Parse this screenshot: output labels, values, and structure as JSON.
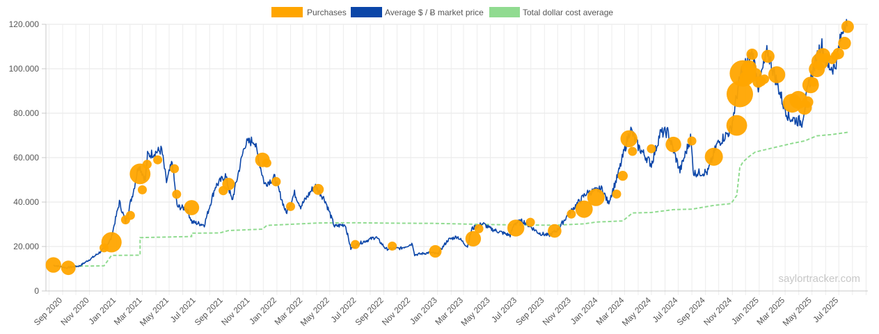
{
  "chart_data": {
    "type": "line",
    "legend": [
      {
        "label": "Purchases",
        "color": "#FFA500",
        "kind": "bubble"
      },
      {
        "label": "Average $ / Ƀ market price",
        "color": "#0B46A8",
        "kind": "line"
      },
      {
        "label": "Total dollar cost average",
        "color": "#90DB90",
        "kind": "dashed"
      }
    ],
    "legend_position": "top-center",
    "grid": true,
    "ylim": [
      0,
      120000
    ],
    "y_ticks": [
      {
        "value": 0,
        "label": "0"
      },
      {
        "value": 20000,
        "label": "20.000"
      },
      {
        "value": 40000,
        "label": "40.000"
      },
      {
        "value": 60000,
        "label": "60.000"
      },
      {
        "value": 80000,
        "label": "80.000"
      },
      {
        "value": 100000,
        "label": "100.000"
      },
      {
        "value": 120000,
        "label": "120.000"
      }
    ],
    "x_ticks": [
      "Sep 2020",
      "Nov 2020",
      "Jan 2021",
      "Mar 2021",
      "May 2021",
      "Jul 2021",
      "Sep 2021",
      "Nov 2021",
      "Jan 2022",
      "Mar 2022",
      "May 2022",
      "Jul 2022",
      "Sep 2022",
      "Nov 2022",
      "Jan 2023",
      "Mar 2023",
      "May 2023",
      "Jul 2023",
      "Sep 2023",
      "Nov 2023",
      "Jan 2024",
      "Mar 2024",
      "May 2024",
      "Jul 2024",
      "Sep 2024",
      "Nov 2024",
      "Jan 2025",
      "Mar 2025",
      "May 2025",
      "Jul 2025"
    ],
    "series": [
      {
        "name": "Average $ / Ƀ market price",
        "color": "#0B46A8",
        "points": [
          [
            "2020-08-11",
            11600
          ],
          [
            "2020-09-10",
            10400
          ],
          [
            "2020-10-10",
            11300
          ],
          [
            "2020-11-10",
            15300
          ],
          [
            "2020-12-05",
            19000
          ],
          [
            "2020-12-20",
            23500
          ],
          [
            "2021-01-08",
            40000
          ],
          [
            "2021-01-22",
            31000
          ],
          [
            "2021-02-10",
            46000
          ],
          [
            "2021-02-21",
            57000
          ],
          [
            "2021-03-08",
            50000
          ],
          [
            "2021-03-13",
            61000
          ],
          [
            "2021-04-14",
            63500
          ],
          [
            "2021-04-25",
            49000
          ],
          [
            "2021-05-08",
            58000
          ],
          [
            "2021-05-19",
            38000
          ],
          [
            "2021-06-10",
            37000
          ],
          [
            "2021-06-22",
            31000
          ],
          [
            "2021-07-20",
            29800
          ],
          [
            "2021-08-14",
            47000
          ],
          [
            "2021-09-06",
            52000
          ],
          [
            "2021-09-21",
            40500
          ],
          [
            "2021-10-20",
            66000
          ],
          [
            "2021-11-10",
            68000
          ],
          [
            "2021-12-04",
            48000
          ],
          [
            "2021-12-27",
            51000
          ],
          [
            "2022-01-22",
            35000
          ],
          [
            "2022-02-10",
            44000
          ],
          [
            "2022-02-24",
            38000
          ],
          [
            "2022-03-28",
            47500
          ],
          [
            "2022-04-20",
            41000
          ],
          [
            "2022-05-12",
            29000
          ],
          [
            "2022-06-05",
            30000
          ],
          [
            "2022-06-18",
            19000
          ],
          [
            "2022-07-08",
            21500
          ],
          [
            "2022-08-14",
            24300
          ],
          [
            "2022-09-06",
            18900
          ],
          [
            "2022-10-10",
            19200
          ],
          [
            "2022-11-05",
            21300
          ],
          [
            "2022-11-10",
            16300
          ],
          [
            "2022-12-15",
            17300
          ],
          [
            "2023-01-01",
            16600
          ],
          [
            "2023-01-25",
            23000
          ],
          [
            "2023-02-15",
            24500
          ],
          [
            "2023-03-10",
            20000
          ],
          [
            "2023-03-20",
            28000
          ],
          [
            "2023-04-14",
            30300
          ],
          [
            "2023-05-01",
            28000
          ],
          [
            "2023-06-15",
            25000
          ],
          [
            "2023-06-25",
            30500
          ],
          [
            "2023-07-14",
            31500
          ],
          [
            "2023-08-20",
            26000
          ],
          [
            "2023-09-11",
            25000
          ],
          [
            "2023-10-01",
            27500
          ],
          [
            "2023-10-25",
            34500
          ],
          [
            "2023-12-05",
            44000
          ],
          [
            "2024-01-10",
            46000
          ],
          [
            "2024-01-24",
            39500
          ],
          [
            "2024-02-14",
            51500
          ],
          [
            "2024-03-14",
            73000
          ],
          [
            "2024-04-01",
            65000
          ],
          [
            "2024-05-01",
            57000
          ],
          [
            "2024-05-21",
            71000
          ],
          [
            "2024-06-07",
            71500
          ],
          [
            "2024-07-05",
            54000
          ],
          [
            "2024-07-29",
            69000
          ],
          [
            "2024-08-05",
            53000
          ],
          [
            "2024-09-06",
            53500
          ],
          [
            "2024-09-27",
            66000
          ],
          [
            "2024-10-29",
            72500
          ],
          [
            "2024-11-12",
            89000
          ],
          [
            "2024-11-22",
            99000
          ],
          [
            "2024-12-17",
            107000
          ],
          [
            "2024-12-30",
            92000
          ],
          [
            "2025-01-20",
            108000
          ],
          [
            "2025-02-25",
            84000
          ],
          [
            "2025-03-10",
            78000
          ],
          [
            "2025-04-08",
            76000
          ],
          [
            "2025-04-25",
            94000
          ],
          [
            "2025-05-22",
            111500
          ],
          [
            "2025-06-05",
            101000
          ],
          [
            "2025-06-22",
            100500
          ],
          [
            "2025-07-14",
            122000
          ],
          [
            "2025-07-20",
            119000
          ]
        ]
      },
      {
        "name": "Total dollar cost average",
        "color": "#90DB90",
        "points": [
          [
            "2020-09-14",
            11100
          ],
          [
            "2020-12-04",
            11300
          ],
          [
            "2020-12-21",
            16000
          ],
          [
            "2021-02-24",
            16100
          ],
          [
            "2021-02-24",
            24000
          ],
          [
            "2021-06-21",
            24500
          ],
          [
            "2021-06-21",
            26000
          ],
          [
            "2021-08-24",
            26100
          ],
          [
            "2021-09-13",
            27200
          ],
          [
            "2021-11-29",
            27800
          ],
          [
            "2021-12-09",
            29500
          ],
          [
            "2022-01-31",
            30000
          ],
          [
            "2022-04-05",
            30600
          ],
          [
            "2022-06-28",
            30700
          ],
          [
            "2022-09-20",
            30500
          ],
          [
            "2022-12-27",
            30400
          ],
          [
            "2023-03-27",
            30000
          ],
          [
            "2023-06-28",
            29700
          ],
          [
            "2023-09-24",
            29600
          ],
          [
            "2023-11-30",
            30200
          ],
          [
            "2023-12-27",
            31000
          ],
          [
            "2024-02-26",
            31500
          ],
          [
            "2024-03-19",
            35100
          ],
          [
            "2024-05-01",
            35300
          ],
          [
            "2024-06-20",
            36600
          ],
          [
            "2024-08-01",
            36800
          ],
          [
            "2024-09-20",
            38500
          ],
          [
            "2024-10-29",
            39300
          ],
          [
            "2024-11-11",
            43000
          ],
          [
            "2024-11-18",
            55500
          ],
          [
            "2024-11-25",
            58000
          ],
          [
            "2024-12-09",
            60500
          ],
          [
            "2024-12-23",
            62500
          ],
          [
            "2025-02-10",
            64800
          ],
          [
            "2025-03-17",
            66400
          ],
          [
            "2025-04-14",
            67500
          ],
          [
            "2025-05-12",
            69800
          ],
          [
            "2025-06-16",
            70400
          ],
          [
            "2025-07-21",
            71400
          ]
        ]
      },
      {
        "name": "Purchases",
        "color": "#FFA500",
        "points": [
          [
            "2020-08-11",
            11700,
            170
          ],
          [
            "2020-09-14",
            10400,
            145
          ],
          [
            "2020-12-04",
            19400,
            40
          ],
          [
            "2020-12-21",
            21900,
            290
          ],
          [
            "2021-01-22",
            32000,
            40
          ],
          [
            "2021-02-02",
            34000,
            35
          ],
          [
            "2021-02-24",
            52700,
            300
          ],
          [
            "2021-03-01",
            45500,
            35
          ],
          [
            "2021-03-12",
            57000,
            35
          ],
          [
            "2021-04-05",
            59000,
            40
          ],
          [
            "2021-05-13",
            55000,
            40
          ],
          [
            "2021-05-18",
            43500,
            35
          ],
          [
            "2021-06-21",
            37500,
            160
          ],
          [
            "2021-09-01",
            45200,
            60
          ],
          [
            "2021-09-13",
            48100,
            110
          ],
          [
            "2021-11-29",
            59000,
            150
          ],
          [
            "2021-12-09",
            57600,
            35
          ],
          [
            "2021-12-30",
            49200,
            60
          ],
          [
            "2022-02-01",
            38000,
            35
          ],
          [
            "2022-04-05",
            45700,
            85
          ],
          [
            "2022-06-28",
            20900,
            40
          ],
          [
            "2022-09-20",
            20200,
            30
          ],
          [
            "2022-12-27",
            17800,
            110
          ],
          [
            "2023-03-23",
            23500,
            170
          ],
          [
            "2023-04-05",
            28000,
            40
          ],
          [
            "2023-06-28",
            28300,
            200
          ],
          [
            "2023-07-31",
            30900,
            35
          ],
          [
            "2023-09-24",
            27000,
            130
          ],
          [
            "2023-11-01",
            34600,
            35
          ],
          [
            "2023-11-30",
            36800,
            210
          ],
          [
            "2023-12-27",
            42100,
            210
          ],
          [
            "2024-02-12",
            43600,
            40
          ],
          [
            "2024-02-26",
            51800,
            70
          ],
          [
            "2024-03-11",
            68500,
            200
          ],
          [
            "2024-03-19",
            62800,
            35
          ],
          [
            "2024-05-01",
            64000,
            35
          ],
          [
            "2024-06-20",
            65900,
            170
          ],
          [
            "2024-08-01",
            67500,
            35
          ],
          [
            "2024-09-20",
            60400,
            230
          ],
          [
            "2024-11-11",
            74500,
            300
          ],
          [
            "2024-11-18",
            88600,
            490
          ],
          [
            "2024-11-25",
            97900,
            500
          ],
          [
            "2024-12-02",
            95900,
            120
          ],
          [
            "2024-12-09",
            100400,
            160
          ],
          [
            "2024-12-16",
            106500,
            90
          ],
          [
            "2024-12-23",
            97400,
            120
          ],
          [
            "2024-12-30",
            94000,
            90
          ],
          [
            "2025-01-06",
            94300,
            60
          ],
          [
            "2025-01-13",
            95300,
            60
          ],
          [
            "2025-01-21",
            105600,
            120
          ],
          [
            "2025-02-10",
            97300,
            200
          ],
          [
            "2025-03-17",
            84500,
            250
          ],
          [
            "2025-03-31",
            86000,
            220
          ],
          [
            "2025-04-14",
            82600,
            150
          ],
          [
            "2025-04-21",
            85000,
            90
          ],
          [
            "2025-04-28",
            92700,
            190
          ],
          [
            "2025-05-05",
            94000,
            40
          ],
          [
            "2025-05-12",
            99800,
            180
          ],
          [
            "2025-05-19",
            103200,
            200
          ],
          [
            "2025-05-26",
            106000,
            150
          ],
          [
            "2025-06-02",
            105000,
            35
          ],
          [
            "2025-06-16",
            104100,
            40
          ],
          [
            "2025-06-23",
            105800,
            40
          ],
          [
            "2025-06-30",
            106800,
            90
          ],
          [
            "2025-07-14",
            111500,
            115
          ],
          [
            "2025-07-21",
            118900,
            110
          ]
        ]
      }
    ],
    "watermark": "saylortracker.com"
  }
}
